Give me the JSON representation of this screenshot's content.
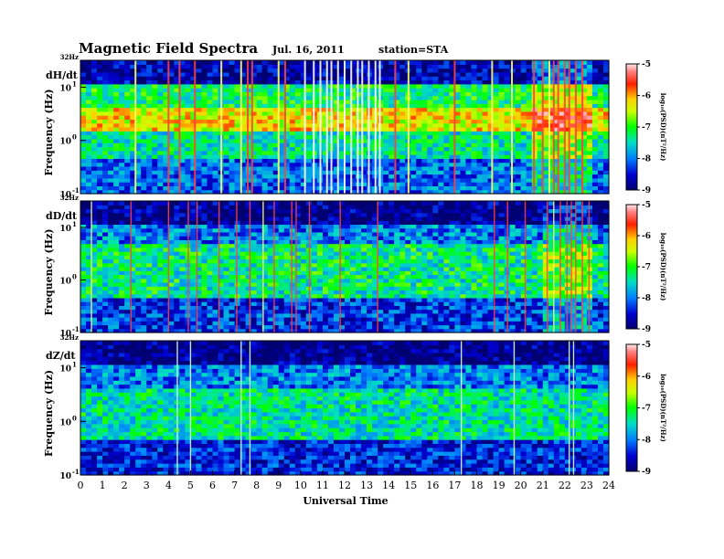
{
  "chart_data": {
    "type": "heatmap",
    "title": "Magnetic  Field  Spectra",
    "date": "Jul.  16, 2011",
    "station": "station=STA",
    "xlabel": "Universal Time",
    "x_ticks": [
      "0",
      "1",
      "2",
      "3",
      "4",
      "5",
      "6",
      "7",
      "8",
      "9",
      "10",
      "11",
      "12",
      "13",
      "14",
      "15",
      "16",
      "17",
      "18",
      "19",
      "20",
      "21",
      "22",
      "23",
      "24"
    ],
    "xlim": [
      0,
      24
    ],
    "ylabel": "Frequency  (Hz)",
    "y_scale": "log",
    "ylim": [
      0.1,
      32
    ],
    "y_ticks": [
      {
        "base": "10",
        "exp": "1",
        "value": 10
      },
      {
        "base": "10",
        "exp": "0",
        "value": 1
      },
      {
        "base": "10",
        "exp": "-1",
        "value": 0.1
      }
    ],
    "y_top_label": "32Hz",
    "colorbar": {
      "label": "log₁₀(PSD)(nT²/Hz)",
      "range": [
        -9,
        -5
      ],
      "ticks": [
        "-5",
        "-6",
        "-7",
        "-8",
        "-9"
      ]
    },
    "panels": [
      {
        "name": "dH/dt",
        "mode": "strong",
        "bands": [
          {
            "freq": [
              1.6,
              4.5
            ],
            "log_psd": -6.3
          },
          {
            "freq": [
              0.5,
              1.6
            ],
            "log_psd": -7.4
          },
          {
            "freq": [
              4.5,
              12
            ],
            "log_psd": -7.2
          },
          {
            "freq": [
              0.1,
              0.5
            ],
            "log_psd": -8.1
          },
          {
            "freq": [
              12,
              32
            ],
            "log_psd": -8.7
          }
        ],
        "spike_times": [
          2.5,
          4.0,
          4.5,
          5.2,
          6.4,
          7.3,
          7.6,
          7.8,
          9.0,
          9.3,
          10.2,
          10.6,
          10.9,
          11.2,
          11.4,
          11.7,
          12.0,
          12.3,
          12.6,
          12.8,
          13.1,
          13.4,
          13.6,
          14.3,
          14.9,
          17.0,
          18.7,
          19.6,
          20.6,
          21.0,
          21.3,
          21.5,
          21.7,
          22.0,
          22.2,
          22.5,
          22.8
        ]
      },
      {
        "name": "dD/dt",
        "mode": "medium",
        "bands": [
          {
            "freq": [
              0.5,
              5
            ],
            "log_psd": -7.3
          },
          {
            "freq": [
              5,
              12
            ],
            "log_psd": -8.0
          },
          {
            "freq": [
              0.1,
              0.5
            ],
            "log_psd": -8.3
          },
          {
            "freq": [
              12,
              32
            ],
            "log_psd": -8.9
          }
        ],
        "spike_times": [
          0.5,
          2.3,
          4.0,
          4.9,
          5.3,
          6.3,
          7.1,
          7.7,
          8.3,
          8.8,
          9.6,
          9.8,
          10.4,
          11.8,
          13.5,
          18.8,
          19.4,
          20.2,
          21.2,
          21.5,
          21.8,
          22.1,
          22.3,
          22.5,
          22.8,
          23.1
        ]
      },
      {
        "name": "dZ/dt",
        "mode": "quiet",
        "bands": [
          {
            "freq": [
              0.5,
              4
            ],
            "log_psd": -7.4
          },
          {
            "freq": [
              4,
              12
            ],
            "log_psd": -8.0
          },
          {
            "freq": [
              0.1,
              0.5
            ],
            "log_psd": -8.4
          },
          {
            "freq": [
              12,
              32
            ],
            "log_psd": -8.9
          }
        ],
        "spike_times": [
          4.4,
          5.0,
          7.3,
          7.7,
          17.3,
          19.7,
          22.2,
          22.4
        ]
      }
    ]
  }
}
